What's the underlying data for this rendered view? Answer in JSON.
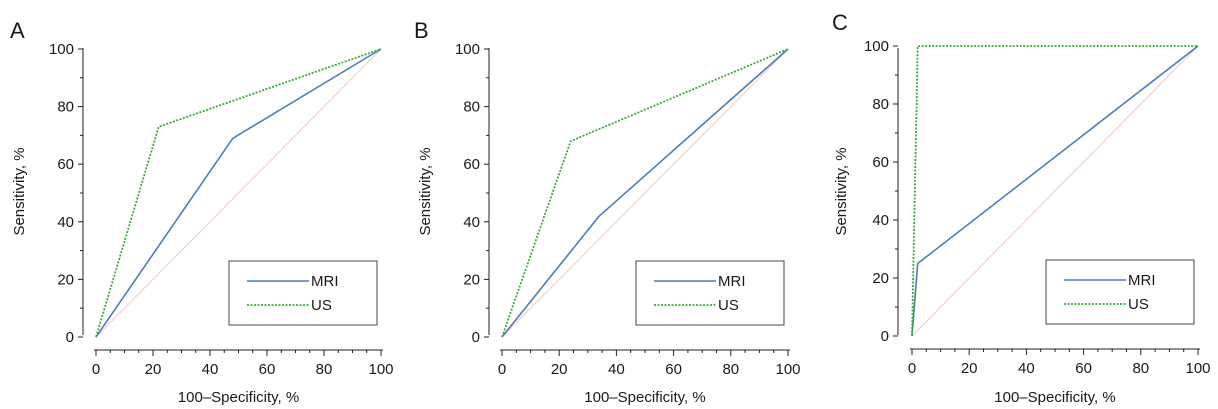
{
  "chart_data": [
    {
      "type": "line",
      "panel_label": "A",
      "xlabel": "100–Specificity, %",
      "ylabel": "Sensitivity, %",
      "xlim": [
        0,
        100
      ],
      "ylim": [
        0,
        100
      ],
      "xticks": [
        0,
        20,
        40,
        60,
        80,
        100
      ],
      "yticks": [
        0,
        20,
        40,
        60,
        80,
        100
      ],
      "legend_position": "bottom-right",
      "reference_line": {
        "x": [
          0,
          100
        ],
        "y": [
          0,
          100
        ],
        "color": "#f0c8c8"
      },
      "series": [
        {
          "name": "MRI",
          "x": [
            0,
            48,
            100
          ],
          "y": [
            0,
            69,
            100
          ],
          "color": "#4a7fb8",
          "style": "solid"
        },
        {
          "name": "US",
          "x": [
            0,
            22,
            100
          ],
          "y": [
            0,
            73,
            100
          ],
          "color": "#3aaa35",
          "style": "dotted"
        }
      ]
    },
    {
      "type": "line",
      "panel_label": "B",
      "xlabel": "100–Specificity, %",
      "ylabel": "Sensitivity, %",
      "xlim": [
        0,
        100
      ],
      "ylim": [
        0,
        100
      ],
      "xticks": [
        0,
        20,
        40,
        60,
        80,
        100
      ],
      "yticks": [
        0,
        20,
        40,
        60,
        80,
        100
      ],
      "legend_position": "bottom-right",
      "reference_line": {
        "x": [
          0,
          100
        ],
        "y": [
          0,
          100
        ],
        "color": "#f0c8c8"
      },
      "series": [
        {
          "name": "MRI",
          "x": [
            0,
            34,
            100
          ],
          "y": [
            0,
            42,
            100
          ],
          "color": "#4a7fb8",
          "style": "solid"
        },
        {
          "name": "US",
          "x": [
            0,
            24,
            100
          ],
          "y": [
            0,
            68,
            100
          ],
          "color": "#3aaa35",
          "style": "dotted"
        }
      ]
    },
    {
      "type": "line",
      "panel_label": "C",
      "xlabel": "100–Specificity, %",
      "ylabel": "Sensitivity, %",
      "xlim": [
        0,
        100
      ],
      "ylim": [
        0,
        100
      ],
      "xticks": [
        0,
        20,
        40,
        60,
        80,
        100
      ],
      "yticks": [
        0,
        20,
        40,
        60,
        80,
        100
      ],
      "legend_position": "bottom-right",
      "reference_line": {
        "x": [
          0,
          100
        ],
        "y": [
          0,
          100
        ],
        "color": "#f0c8c8"
      },
      "series": [
        {
          "name": "MRI",
          "x": [
            0,
            2,
            100
          ],
          "y": [
            0,
            25,
            100
          ],
          "color": "#4a7fb8",
          "style": "solid"
        },
        {
          "name": "US",
          "x": [
            0,
            2,
            100
          ],
          "y": [
            0,
            100,
            100
          ],
          "color": "#3aaa35",
          "style": "dotted"
        }
      ]
    }
  ]
}
